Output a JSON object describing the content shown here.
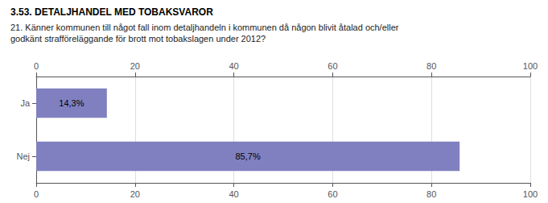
{
  "chart_data": {
    "type": "bar",
    "orientation": "horizontal",
    "title": "3.53. DETALJHANDEL MED TOBAKSVAROR",
    "subtitle": "21. Känner kommunen till något fall inom detaljhandeln i kommunen då någon blivit åtalad och/eller\ngodkänt strafföreläggande för brott mot tobakslagen under 2012?",
    "categories": [
      "Ja",
      "Nej"
    ],
    "values": [
      14.3,
      85.7
    ],
    "value_labels": [
      "14,3%",
      "85,7%"
    ],
    "data_labels": true,
    "color": "#8080C0",
    "xlim": [
      0,
      100
    ],
    "xticks": [
      0,
      20,
      40,
      60,
      80,
      100
    ],
    "grid": true
  }
}
